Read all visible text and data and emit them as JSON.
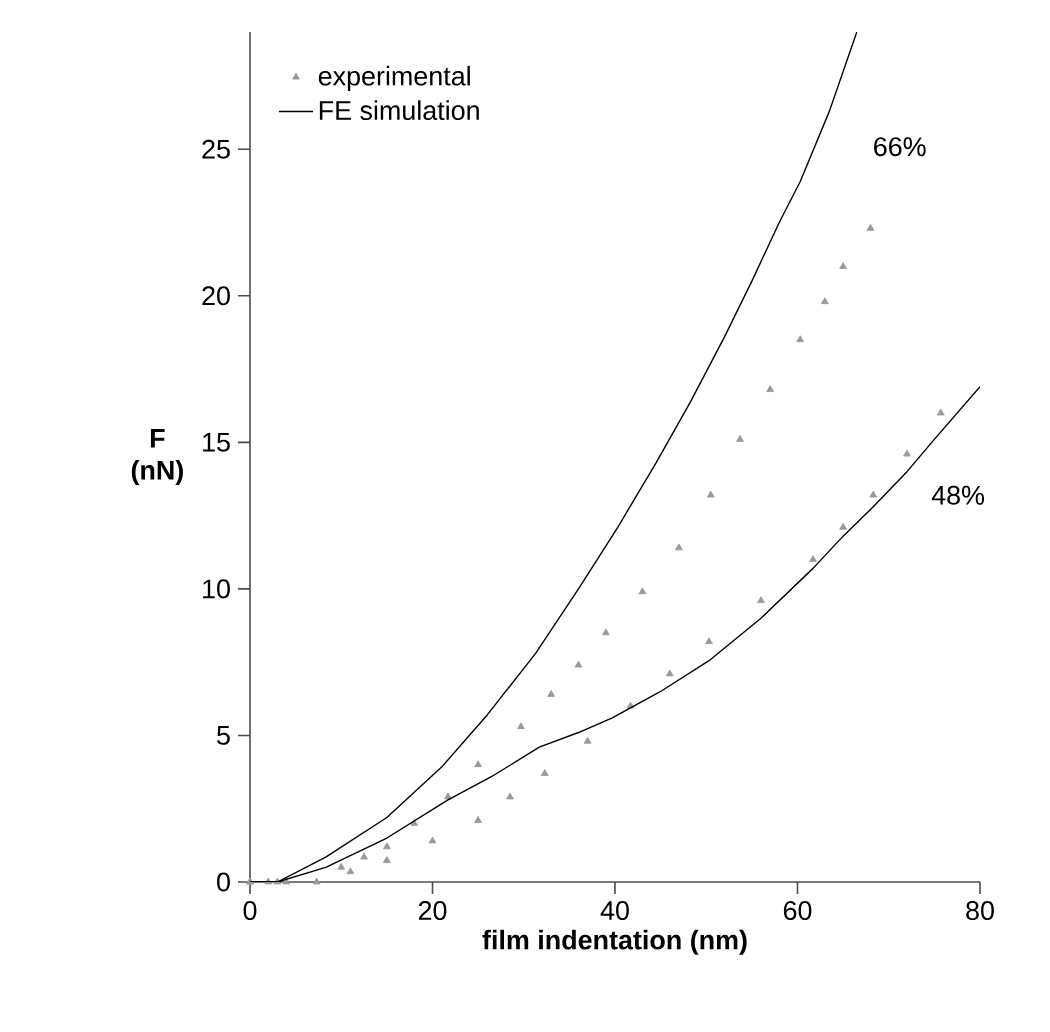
{
  "chart_data": {
    "type": "line",
    "xlabel": "film indentation (nm)",
    "ylabel": "F (nN)",
    "xlim": [
      0,
      80
    ],
    "ylim": [
      0,
      29
    ],
    "xticks": [
      0,
      20,
      40,
      60,
      80
    ],
    "yticks": [
      0,
      5,
      10,
      15,
      20,
      25
    ],
    "grid": false,
    "legend": "top left",
    "series": [
      {
        "name": "experimental",
        "type": "scatter",
        "marker": "triangle",
        "color": "#999999",
        "x": [
          0,
          2,
          4,
          10,
          12.5,
          15,
          18,
          21.7,
          25,
          29.7,
          33,
          36,
          39,
          43,
          47,
          50.5,
          53.7,
          57,
          60.3,
          63,
          65,
          68
        ],
        "values": [
          0,
          0,
          0,
          0.5,
          0.85,
          1.2,
          2.0,
          2.9,
          4.0,
          5.3,
          6.4,
          7.4,
          8.5,
          9.9,
          11.4,
          13.2,
          15.1,
          16.8,
          18.5,
          19.8,
          21.0,
          22.3
        ]
      },
      {
        "type": "scatter",
        "marker": "triangle",
        "color": "#999999",
        "x": [
          0,
          3,
          7.3,
          11,
          15,
          20,
          25,
          28.5,
          32.3,
          37,
          41.7,
          46,
          50.3,
          56,
          61.7,
          65,
          68.3,
          72,
          75.7
        ],
        "values": [
          0,
          0,
          0,
          0.35,
          0.73,
          1.4,
          2.1,
          2.9,
          3.7,
          4.8,
          6.0,
          7.1,
          8.2,
          9.6,
          11.0,
          12.1,
          13.2,
          14.6,
          16.0
        ]
      },
      {
        "name": "FE simulation",
        "color": "#000000",
        "x": [
          0,
          3,
          8.3,
          15,
          21,
          26,
          31.3,
          36,
          40.3,
          44.5,
          48.3,
          52,
          55,
          58,
          60.3,
          63.5,
          66.5
        ],
        "values": [
          0,
          0,
          0.85,
          2.2,
          3.92,
          5.7,
          7.8,
          10.0,
          12.1,
          14.3,
          16.4,
          18.6,
          20.5,
          22.5,
          23.9,
          26.3,
          29.0
        ]
      },
      {
        "color": "#000000",
        "x": [
          0,
          3,
          8.3,
          15,
          21.7,
          26.5,
          31.7,
          36,
          39.7,
          45,
          50.3,
          56,
          61.7,
          65,
          68.3,
          72,
          75,
          80
        ],
        "values": [
          0,
          0,
          0.5,
          1.5,
          2.8,
          3.6,
          4.6,
          5.1,
          5.6,
          6.5,
          7.55,
          9.0,
          10.7,
          11.8,
          12.8,
          14.0,
          15.1,
          16.9
        ]
      }
    ],
    "annotations": [
      "66%",
      "48%"
    ]
  }
}
